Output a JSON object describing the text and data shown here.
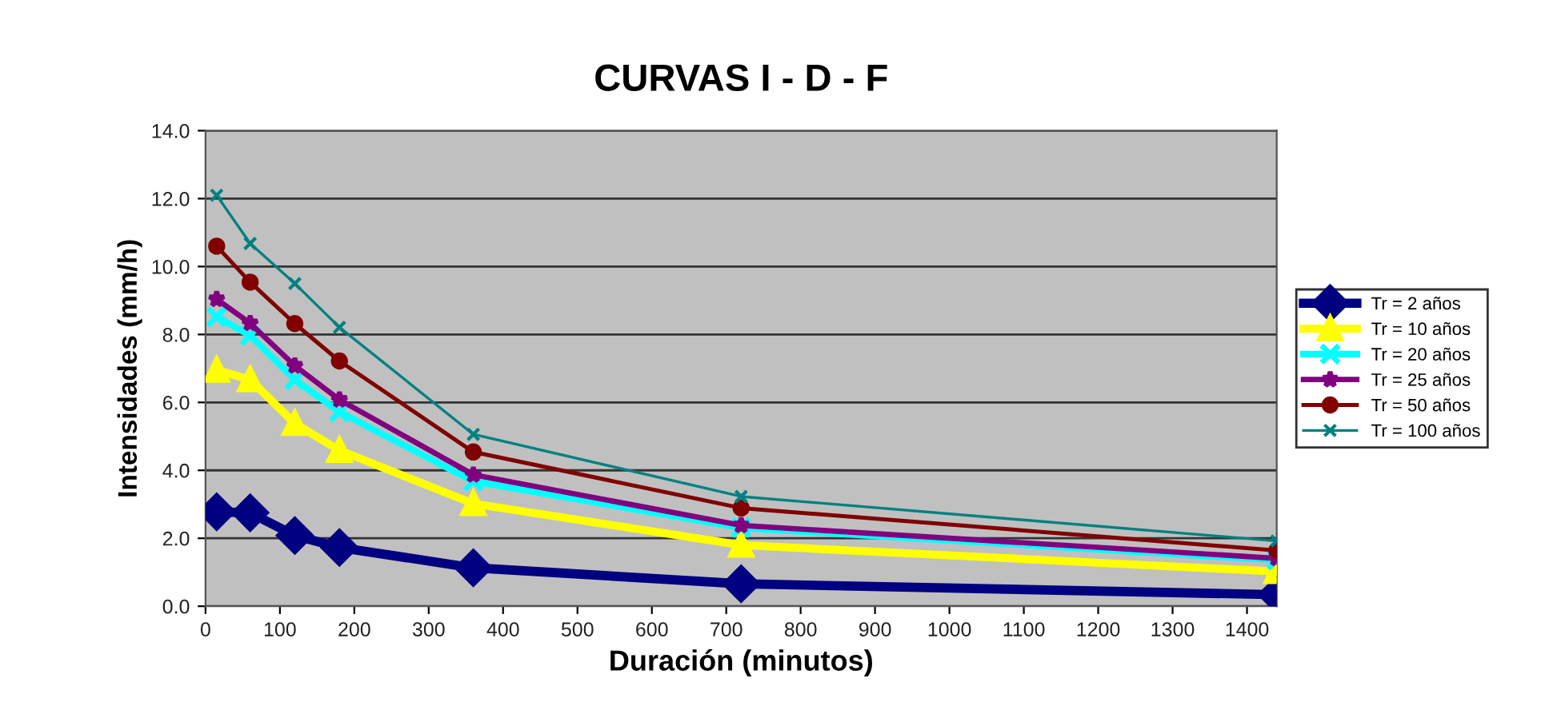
{
  "chart_data": {
    "type": "line",
    "title": "CURVAS I - D - F",
    "xlabel": "Duración (minutos)",
    "ylabel": "Intensidades (mm/h)",
    "x": [
      15,
      60,
      120,
      180,
      360,
      720,
      1440
    ],
    "series": [
      {
        "name": "Tr = 2 años",
        "color": "#000080",
        "marker": "diamond",
        "values": [
          2.78,
          2.75,
          2.08,
          1.73,
          1.13,
          0.66,
          0.34
        ]
      },
      {
        "name": "Tr = 10 años",
        "color": "#ffff00",
        "marker": "triangle",
        "values": [
          6.95,
          6.67,
          5.38,
          4.59,
          3.02,
          1.8,
          1.02
        ]
      },
      {
        "name": "Tr = 20 años",
        "color": "#00ffff",
        "marker": "cross",
        "values": [
          8.52,
          7.97,
          6.67,
          5.72,
          3.68,
          2.31,
          1.36
        ]
      },
      {
        "name": "Tr = 25 años",
        "color": "#800080",
        "marker": "star",
        "values": [
          9.04,
          8.33,
          7.08,
          6.08,
          3.87,
          2.38,
          1.41
        ]
      },
      {
        "name": "Tr = 50 años",
        "color": "#800000",
        "marker": "circle",
        "values": [
          10.6,
          9.54,
          8.32,
          7.22,
          4.54,
          2.89,
          1.64
        ]
      },
      {
        "name": "Tr = 100 años",
        "color": "#008080",
        "marker": "cross",
        "values": [
          12.1,
          10.68,
          9.5,
          8.21,
          5.06,
          3.23,
          1.92
        ]
      }
    ],
    "xlim": [
      0,
      1440
    ],
    "xticks": [
      0,
      100,
      200,
      300,
      400,
      500,
      600,
      700,
      800,
      900,
      1000,
      1100,
      1200,
      1300,
      1400
    ],
    "ylim": [
      0,
      14
    ],
    "yticks": [
      {
        "value": 0,
        "label": "0.0"
      },
      {
        "value": 2,
        "label": "2.0"
      },
      {
        "value": 4,
        "label": "4.0"
      },
      {
        "value": 6,
        "label": "6.0"
      },
      {
        "value": 8,
        "label": "8.0"
      },
      {
        "value": 10,
        "label": "10.0"
      },
      {
        "value": 12,
        "label": "12.0"
      },
      {
        "value": 14,
        "label": "14.0"
      }
    ],
    "grid": "y",
    "legend": "right",
    "line_style": "solid"
  }
}
